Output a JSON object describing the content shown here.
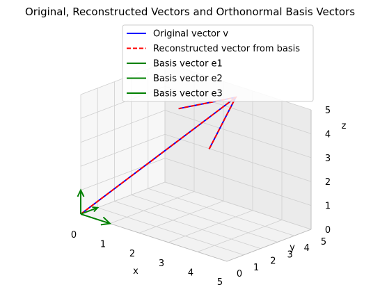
{
  "chart_data": {
    "type": "line",
    "title": "Original, Reconstructed Vectors and Orthonormal Basis Vectors",
    "xlabel": "x",
    "ylabel": "y",
    "zlabel": "z",
    "xlim": [
      0,
      5
    ],
    "ylim": [
      0,
      5
    ],
    "zlim": [
      0,
      5
    ],
    "xticks": [
      "0",
      "1",
      "2",
      "3",
      "4",
      "5"
    ],
    "yticks": [
      "0",
      "1",
      "2",
      "3",
      "4",
      "5"
    ],
    "zticks": [
      "0",
      "1",
      "2",
      "3",
      "4",
      "5"
    ],
    "grid": true,
    "legend_position": "top-right",
    "series": [
      {
        "name": "Original vector v",
        "color": "#0000ff",
        "style": "solid",
        "start": [
          0,
          0,
          0
        ],
        "end": [
          3,
          4,
          5
        ]
      },
      {
        "name": "Reconstructed vector from basis",
        "color": "#ff0000",
        "style": "dashed",
        "start": [
          0,
          0,
          0
        ],
        "end": [
          3,
          4,
          5
        ]
      },
      {
        "name": "Basis vector e1",
        "color": "#008000",
        "style": "solid",
        "start": [
          0,
          0,
          0
        ],
        "end": [
          1,
          0,
          0
        ]
      },
      {
        "name": "Basis vector e2",
        "color": "#008000",
        "style": "solid",
        "start": [
          0,
          0,
          0
        ],
        "end": [
          0,
          1,
          0
        ]
      },
      {
        "name": "Basis vector e3",
        "color": "#008000",
        "style": "solid",
        "start": [
          0,
          0,
          0
        ],
        "end": [
          0,
          0,
          1
        ]
      }
    ]
  }
}
